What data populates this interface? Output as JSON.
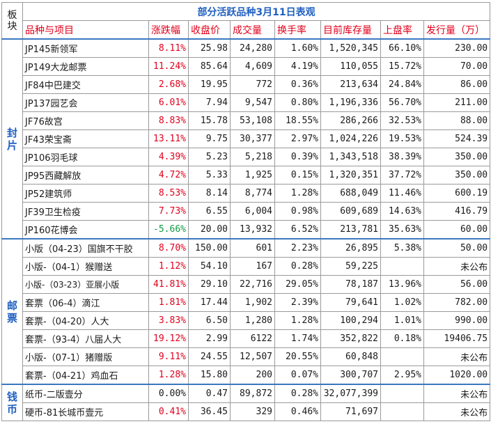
{
  "table": {
    "block_header": "板块",
    "title": "部分活跃品种3月11日表观",
    "headers": {
      "name": "品种与项目",
      "change": "涨跌幅",
      "close": "收盘价",
      "volume": "成交量",
      "turnover": "换手率",
      "stock": "目前库存量",
      "listing_rate": "上盘率",
      "issue": "发行量（万）"
    },
    "sections": [
      {
        "label": "封片",
        "rows": [
          {
            "name": "JP145新领军",
            "change": "8.11%",
            "close": "25.98",
            "volume": "24,280",
            "turnover": "1.60%",
            "stock": "1,520,345",
            "listing_rate": "66.10%",
            "issue": "230.00",
            "dir": "up"
          },
          {
            "name": "JP149大龙邮票",
            "change": "11.24%",
            "close": "85.64",
            "volume": "4,609",
            "turnover": "4.19%",
            "stock": "110,055",
            "listing_rate": "15.72%",
            "issue": "70.00",
            "dir": "up"
          },
          {
            "name": "JF84中巴建交",
            "change": "2.68%",
            "close": "19.95",
            "volume": "772",
            "turnover": "0.36%",
            "stock": "213,634",
            "listing_rate": "24.84%",
            "issue": "86.00",
            "dir": "up"
          },
          {
            "name": "JP137园艺会",
            "change": "6.01%",
            "close": "7.94",
            "volume": "9,547",
            "turnover": "0.80%",
            "stock": "1,196,336",
            "listing_rate": "56.70%",
            "issue": "211.00",
            "dir": "up"
          },
          {
            "name": "JF76故宫",
            "change": "8.83%",
            "close": "15.78",
            "volume": "53,108",
            "turnover": "18.55%",
            "stock": "286,266",
            "listing_rate": "32.53%",
            "issue": "88.00",
            "dir": "up"
          },
          {
            "name": "JF43荣宝斋",
            "change": "13.11%",
            "close": "9.75",
            "volume": "30,377",
            "turnover": "2.97%",
            "stock": "1,024,226",
            "listing_rate": "19.53%",
            "issue": "524.39",
            "dir": "up"
          },
          {
            "name": "JP106羽毛球",
            "change": "4.39%",
            "close": "5.23",
            "volume": "5,218",
            "turnover": "0.39%",
            "stock": "1,343,518",
            "listing_rate": "38.39%",
            "issue": "350.00",
            "dir": "up"
          },
          {
            "name": "JP95西藏解放",
            "change": "4.72%",
            "close": "5.33",
            "volume": "1,925",
            "turnover": "0.15%",
            "stock": "1,320,351",
            "listing_rate": "37.72%",
            "issue": "350.00",
            "dir": "up"
          },
          {
            "name": "JP52建筑师",
            "change": "8.53%",
            "close": "8.14",
            "volume": "8,774",
            "turnover": "1.28%",
            "stock": "688,049",
            "listing_rate": "11.46%",
            "issue": "600.19",
            "dir": "up"
          },
          {
            "name": "JF39卫生检疫",
            "change": "7.73%",
            "close": "6.55",
            "volume": "6,004",
            "turnover": "0.98%",
            "stock": "609,689",
            "listing_rate": "14.63%",
            "issue": "416.79",
            "dir": "up"
          },
          {
            "name": "JP160花博会",
            "change": "-5.66%",
            "close": "20.00",
            "volume": "13,932",
            "turnover": "6.52%",
            "stock": "213,781",
            "listing_rate": "35.63%",
            "issue": "60.00",
            "dir": "down"
          }
        ]
      },
      {
        "label": "邮票",
        "rows": [
          {
            "name": "小版（04-23）国旗不干胶",
            "change": "8.70%",
            "close": "150.00",
            "volume": "601",
            "turnover": "2.23%",
            "stock": "26,895",
            "listing_rate": "5.38%",
            "issue": "50.00",
            "dir": "up"
          },
          {
            "name": "小版-（04-1）猴赠送",
            "change": "1.12%",
            "close": "54.10",
            "volume": "167",
            "turnover": "0.28%",
            "stock": "59,225",
            "listing_rate": "",
            "issue": "未公布",
            "dir": "up"
          },
          {
            "name": "小版-（03-23）亚展小版",
            "change": "41.81%",
            "close": "29.10",
            "volume": "22,716",
            "turnover": "29.05%",
            "stock": "78,187",
            "listing_rate": "13.96%",
            "issue": "56.00",
            "dir": "up",
            "small": true
          },
          {
            "name": "套票（06-4）滴江",
            "change": "1.81%",
            "close": "17.44",
            "volume": "1,902",
            "turnover": "2.39%",
            "stock": "79,641",
            "listing_rate": "1.02%",
            "issue": "782.00",
            "dir": "up"
          },
          {
            "name": "套票-（04-20）人大",
            "change": "3.83%",
            "close": "6.50",
            "volume": "1,280",
            "turnover": "1.28%",
            "stock": "100,294",
            "listing_rate": "1.01%",
            "issue": "990.00",
            "dir": "up"
          },
          {
            "name": "套票-（93-4）八届人大",
            "change": "19.12%",
            "close": "2.99",
            "volume": "6122",
            "turnover": "1.74%",
            "stock": "352,822",
            "listing_rate": "0.18%",
            "issue": "19406.75",
            "dir": "up"
          },
          {
            "name": "小版-（07-1）猪赠版",
            "change": "9.11%",
            "close": "24.55",
            "volume": "12,507",
            "turnover": "20.55%",
            "stock": "60,848",
            "listing_rate": "",
            "issue": "未公布",
            "dir": "up"
          },
          {
            "name": "套票-（04-21）鸡血石",
            "change": "1.28%",
            "close": "15.80",
            "volume": "200",
            "turnover": "0.07%",
            "stock": "300,707",
            "listing_rate": "2.95%",
            "issue": "1020.00",
            "dir": "up"
          }
        ]
      },
      {
        "label": "钱币",
        "rows": [
          {
            "name": "纸币-二版壹分",
            "change": "0.00%",
            "close": "0.47",
            "volume": "89,872",
            "turnover": "0.28%",
            "stock": "32,077,399",
            "listing_rate": "",
            "issue": "未公布",
            "dir": "flat"
          },
          {
            "name": "硬币-81长城币壹元",
            "change": "0.41%",
            "close": "36.45",
            "volume": "329",
            "turnover": "0.46%",
            "stock": "71,697",
            "listing_rate": "",
            "issue": "未公布",
            "dir": "up"
          }
        ]
      }
    ]
  }
}
